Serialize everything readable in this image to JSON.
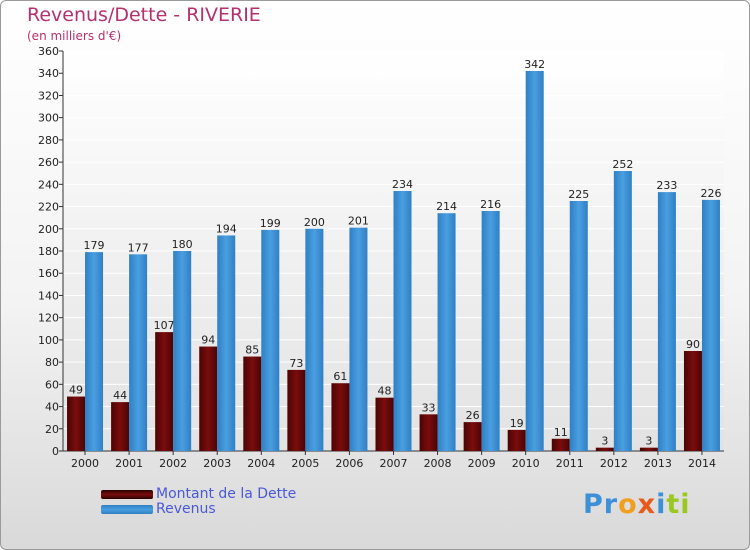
{
  "chart_data": {
    "type": "bar",
    "title": "Revenus/Dette - RIVERIE",
    "subtitle": "(en milliers d'€)",
    "categories": [
      "2000",
      "2001",
      "2002",
      "2003",
      "2004",
      "2005",
      "2006",
      "2007",
      "2008",
      "2009",
      "2010",
      "2011",
      "2012",
      "2013",
      "2014"
    ],
    "series": [
      {
        "name": "Montant de la Dette",
        "color": "#7b0c0c",
        "values": [
          49,
          44,
          107,
          94,
          85,
          73,
          61,
          48,
          33,
          26,
          19,
          11,
          3,
          3,
          90
        ]
      },
      {
        "name": "Revenus",
        "color": "#4a9fe0",
        "values": [
          179,
          177,
          180,
          194,
          199,
          200,
          201,
          234,
          214,
          216,
          342,
          225,
          252,
          233,
          226
        ]
      }
    ],
    "ylim": [
      0,
      360
    ],
    "yticks": [
      0,
      20,
      40,
      60,
      80,
      100,
      120,
      140,
      160,
      180,
      200,
      220,
      240,
      260,
      280,
      300,
      320,
      340,
      360
    ],
    "grid": true,
    "legend_position": "bottom-left"
  },
  "logo": {
    "parts": [
      "Pr",
      "o",
      "x",
      "i",
      "ti"
    ],
    "colors": [
      "#3d8fd8",
      "#f0a020",
      "#e85a1a",
      "#3d8fd8",
      "#9ac820"
    ]
  }
}
